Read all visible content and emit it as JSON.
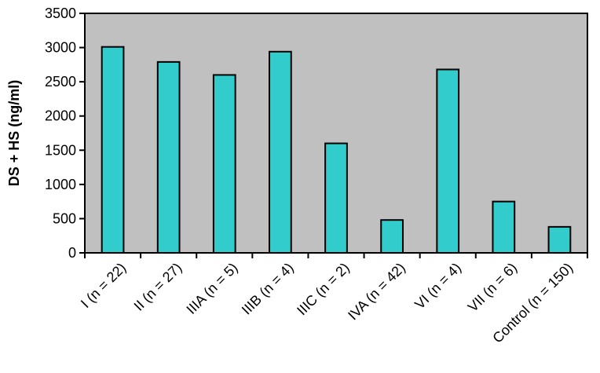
{
  "chart_data": {
    "type": "bar",
    "title": "",
    "xlabel": "",
    "ylabel": "DS + HS (ng/ml)",
    "ylim": [
      0,
      3500
    ],
    "yticks": [
      0,
      500,
      1000,
      1500,
      2000,
      2500,
      3000,
      3500
    ],
    "grid": false,
    "legend": "none",
    "categories": [
      "I (n = 22)",
      "II (n = 27)",
      "IIIA (n = 5)",
      "IIIB (n = 4)",
      "IIIC (n = 2)",
      "IVA (n = 42)",
      "VI (n = 4)",
      "VII (n = 6)",
      "Control (n = 150)"
    ],
    "values": [
      3010,
      2790,
      2600,
      2940,
      1600,
      480,
      2680,
      750,
      380
    ],
    "colors": {
      "bar_fill": "#33CCCC",
      "plot_background": "#C0C0C0",
      "outline": "#000000"
    }
  }
}
